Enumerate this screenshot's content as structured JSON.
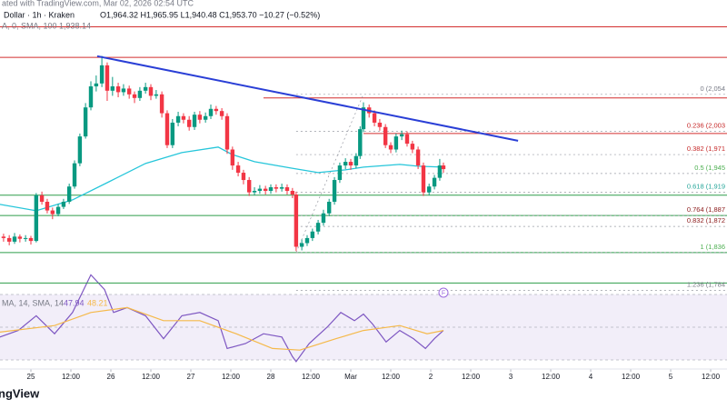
{
  "chart_data": {
    "type": "candlestick",
    "header": {
      "source": "ated with TradingView.com, Mar 02, 2026 02:54 UTC",
      "symbol": "Dollar · 1h · Kraken",
      "ohlc": "O1,964.32 H1,965.95 L1,940.48 C1,953.70 −10.27 (−0.52%)",
      "ma": "A, 0, SMA, 100  1,938.14"
    },
    "watermark": "ngView",
    "xlim": [
      -9.27,
      208.9
    ],
    "xticks": [
      {
        "value": 0,
        "label": "25"
      },
      {
        "value": 12,
        "label": "12:00"
      },
      {
        "value": 24,
        "label": "26"
      },
      {
        "value": 36,
        "label": "12:00"
      },
      {
        "value": 48,
        "label": "27"
      },
      {
        "value": 60,
        "label": "12:00"
      },
      {
        "value": 72,
        "label": "28"
      },
      {
        "value": 84,
        "label": "12:00"
      },
      {
        "value": 96,
        "label": "Mar"
      },
      {
        "value": 108,
        "label": "12:00"
      },
      {
        "value": 120,
        "label": "2"
      },
      {
        "value": 132,
        "label": "12:00"
      },
      {
        "value": 144,
        "label": "3"
      },
      {
        "value": 156,
        "label": "12:00"
      },
      {
        "value": 168,
        "label": "4"
      },
      {
        "value": 180,
        "label": "12:00"
      },
      {
        "value": 192,
        "label": "5"
      },
      {
        "value": 204,
        "label": "12:00"
      }
    ],
    "ylim": [
      1777,
      2184
    ],
    "up_color": "#089981",
    "down_color": "#f23645",
    "x": [
      -8.2,
      -6.5,
      -4.9,
      -3.3,
      -1.6,
      0,
      1.6,
      3.3,
      4.9,
      6.5,
      8.2,
      9.8,
      11.5,
      13.1,
      14.7,
      16.4,
      18,
      19.6,
      21.3,
      22.9,
      24.5,
      26.2,
      27.8,
      29.5,
      31.1,
      32.7,
      34.4,
      36,
      37.6,
      39.3,
      40.9,
      42.5,
      44.2,
      45.8,
      47.5,
      49.1,
      50.7,
      52.4,
      54,
      55.6,
      57.3,
      58.9,
      60.5,
      62.2,
      63.8,
      65.5,
      67.1,
      68.7,
      70.4,
      72,
      73.6,
      75.3,
      76.9,
      78.5,
      79.6,
      81.3,
      82.9,
      84.5,
      86.2,
      87.8,
      89.5,
      91.1,
      92.7,
      94.4,
      96,
      97.6,
      98.8,
      99.8,
      101.5,
      103.1,
      104.7,
      106.4,
      108,
      109.6,
      111.3,
      112.9,
      114.5,
      116.2,
      117.8,
      119.5,
      121.1,
      122.7,
      123.8
    ],
    "open": [
      1858,
      1856,
      1851,
      1858,
      1855,
      1856,
      1852,
      1915,
      1906,
      1894,
      1889,
      1899,
      1906,
      1927,
      1959,
      1996,
      2036,
      2065,
      2069,
      2094,
      2059,
      2065,
      2057,
      2062,
      2054,
      2049,
      2059,
      2064,
      2052,
      2054,
      2028,
      1984,
      2015,
      2024,
      2019,
      2009,
      2026,
      2019,
      2024,
      2034,
      2031,
      2024,
      1978,
      1956,
      1946,
      1936,
      1919,
      1921,
      1924,
      1921,
      1926,
      1924,
      1926,
      1921,
      1916,
      1844,
      1849,
      1856,
      1865,
      1877,
      1890,
      1906,
      1936,
      1956,
      1961,
      1956,
      1969,
      2006,
      2036,
      2028,
      2015,
      2009,
      1984,
      1978,
      1996,
      1999,
      1986,
      1978,
      1956,
      1919,
      1927,
      1939,
      1956
    ],
    "high": [
      1862,
      1860,
      1863,
      1861,
      1860,
      1859,
      1918,
      1920,
      1910,
      1898,
      1903,
      1910,
      1931,
      1963,
      2000,
      2042,
      2072,
      2080,
      2107,
      2098,
      2078,
      2070,
      2068,
      2066,
      2058,
      2064,
      2070,
      2068,
      2060,
      2058,
      2032,
      2020,
      2030,
      2028,
      2024,
      2030,
      2031,
      2029,
      2040,
      2038,
      2035,
      2028,
      1982,
      1961,
      1950,
      1940,
      1926,
      1929,
      1928,
      1930,
      1930,
      1931,
      1930,
      1925,
      1920,
      1854,
      1860,
      1869,
      1881,
      1895,
      1910,
      1940,
      1960,
      1966,
      1965,
      1973,
      2010,
      2043,
      2040,
      2032,
      2020,
      2013,
      1988,
      2000,
      2004,
      2003,
      1990,
      1982,
      1960,
      1931,
      1943,
      1965,
      1960
    ],
    "low": [
      1851,
      1846,
      1848,
      1850,
      1851,
      1847,
      1850,
      1902,
      1890,
      1882,
      1886,
      1896,
      1903,
      1924,
      1955,
      1993,
      2032,
      2058,
      2064,
      2045,
      2052,
      2050,
      2052,
      2048,
      2042,
      2045,
      2055,
      2046,
      2048,
      2022,
      1980,
      1980,
      2010,
      2014,
      2004,
      2005,
      2014,
      2015,
      2020,
      2026,
      2019,
      1972,
      1950,
      1941,
      1930,
      1914,
      1915,
      1917,
      1916,
      1917,
      1919,
      1920,
      1916,
      1911,
      1838,
      1839,
      1845,
      1852,
      1861,
      1873,
      1886,
      1902,
      1932,
      1951,
      1950,
      1952,
      1965,
      2002,
      2022,
      2010,
      2004,
      1980,
      1973,
      1974,
      1991,
      1982,
      1973,
      1951,
      1914,
      1915,
      1923,
      1935,
      1946
    ],
    "close": [
      1856,
      1851,
      1858,
      1855,
      1856,
      1852,
      1915,
      1906,
      1894,
      1889,
      1899,
      1906,
      1927,
      1959,
      1996,
      2036,
      2065,
      2069,
      2094,
      2059,
      2065,
      2057,
      2062,
      2054,
      2049,
      2059,
      2064,
      2052,
      2054,
      2028,
      1984,
      2015,
      2024,
      2019,
      2009,
      2026,
      2019,
      2024,
      2034,
      2031,
      2024,
      1978,
      1956,
      1946,
      1936,
      1919,
      1921,
      1924,
      1921,
      1926,
      1924,
      1926,
      1921,
      1916,
      1844,
      1849,
      1856,
      1865,
      1877,
      1890,
      1906,
      1936,
      1956,
      1961,
      1956,
      1969,
      2006,
      2036,
      2028,
      2015,
      2009,
      1984,
      1978,
      1996,
      1999,
      1986,
      1978,
      1956,
      1919,
      1927,
      1939,
      1956,
      1951
    ],
    "sma": {
      "color": "#26c6da",
      "x": [
        -9.3,
        1.6,
        12.5,
        23.5,
        34.4,
        45.3,
        56.2,
        60.3,
        67.1,
        78,
        86.2,
        94.4,
        99.8,
        110.7,
        116.2,
        123.8
      ],
      "values": [
        1902.4,
        1893.6,
        1908.6,
        1933.7,
        1958.8,
        1973.8,
        1981.3,
        1971.3,
        1961.3,
        1952.5,
        1946.2,
        1950,
        1953.7,
        1957.5,
        1955,
        1953.7
      ]
    },
    "trendline": {
      "color": "#2a3fd6",
      "x": [
        19.9,
        146.2
      ],
      "values": [
        2106.6,
        1990.1
      ]
    },
    "levels": [
      {
        "price": 2147,
        "color": "#d32f2f"
      },
      {
        "price": 2105,
        "color": "#d32f2f"
      },
      {
        "price": 2049,
        "color": "#d32f2f",
        "from": 69.8
      },
      {
        "price": 2000,
        "color": "#d32f2f",
        "from": 99.8
      },
      {
        "price": 1915,
        "color": "#2e9e4a"
      },
      {
        "price": 1887,
        "color": "#2e9e4a"
      },
      {
        "price": 1836,
        "color": "#2e9e4a"
      },
      {
        "price": 1794,
        "color": "#2e9e4a"
      }
    ],
    "fib_anchor_x": [
      79.6,
      99.8
    ],
    "fib_levels": [
      {
        "label": "0 (2,054",
        "price": 2054,
        "color": "#787b86"
      },
      {
        "label": "0.236 (2,003",
        "price": 2003,
        "color": "#c62828"
      },
      {
        "label": "0.382 (1,971",
        "price": 1971,
        "color": "#c62828"
      },
      {
        "label": "0.5 (1,945",
        "price": 1945,
        "color": "#4caf50"
      },
      {
        "label": "0.618 (1,919",
        "price": 1919,
        "color": "#26a69a"
      },
      {
        "label": "0.764 (1,887",
        "price": 1887,
        "color": "#8b1a1a"
      },
      {
        "label": "0.832 (1,872",
        "price": 1872,
        "color": "#8b1a1a"
      },
      {
        "label": "1 (1,836",
        "price": 1836,
        "color": "#4caf50"
      },
      {
        "label": "1.236 (1,784",
        "price": 1784,
        "color": "#787b86"
      }
    ],
    "indicator": {
      "type": "line",
      "header": "MA, 14, SMA, 14",
      "last_rsi": "47.94",
      "last_sma": "48.21",
      "ylim": [
        25,
        90
      ],
      "levels": [
        70,
        50,
        30
      ],
      "series": [
        {
          "name": "RSI",
          "color": "#7e57c2",
          "x": [
            -9.3,
            -3.8,
            1.6,
            7.1,
            12.5,
            18,
            22.1,
            24.8,
            28.9,
            34.4,
            39.8,
            45.3,
            50.7,
            56.2,
            58.9,
            64.4,
            69.8,
            75.3,
            78.5,
            79.6,
            83.5,
            88.9,
            93,
            97.1,
            99.8,
            102.5,
            106.6,
            110.7,
            114.8,
            118.4,
            121.1,
            123.8
          ],
          "values": [
            44,
            48,
            57,
            46,
            59,
            82,
            73,
            59,
            62,
            57,
            43,
            57,
            59,
            54,
            37,
            40,
            46,
            44,
            32,
            29,
            40,
            50,
            59,
            54,
            58,
            52,
            41,
            48,
            43,
            37,
            43,
            48
          ]
        },
        {
          "name": "RSI SMA",
          "color": "#f5b94a",
          "x": [
            -9.3,
            7.1,
            18,
            28.9,
            39.8,
            50.7,
            61.6,
            72.5,
            80.7,
            91.6,
            99.8,
            110.7,
            118.9,
            123.8
          ],
          "values": [
            47,
            51,
            59,
            62,
            54,
            54,
            46,
            37,
            36,
            43,
            48,
            51,
            46,
            48
          ]
        }
      ]
    }
  }
}
